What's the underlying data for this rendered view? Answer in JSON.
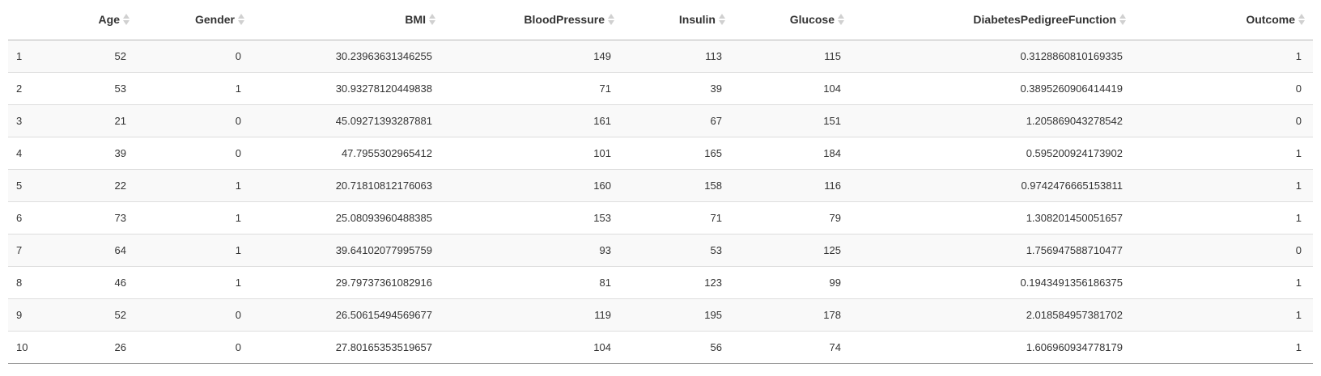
{
  "table": {
    "columns": [
      "",
      "Age",
      "Gender",
      "BMI",
      "BloodPressure",
      "Insulin",
      "Glucose",
      "DiabetesPedigreeFunction",
      "Outcome"
    ],
    "rows": [
      [
        "1",
        "52",
        "0",
        "30.23963631346255",
        "149",
        "113",
        "115",
        "0.3128860810169335",
        "1"
      ],
      [
        "2",
        "53",
        "1",
        "30.93278120449838",
        "71",
        "39",
        "104",
        "0.3895260906414419",
        "0"
      ],
      [
        "3",
        "21",
        "0",
        "45.09271393287881",
        "161",
        "67",
        "151",
        "1.205869043278542",
        "0"
      ],
      [
        "4",
        "39",
        "0",
        "47.7955302965412",
        "101",
        "165",
        "184",
        "0.595200924173902",
        "1"
      ],
      [
        "5",
        "22",
        "1",
        "20.71810812176063",
        "160",
        "158",
        "116",
        "0.9742476665153811",
        "1"
      ],
      [
        "6",
        "73",
        "1",
        "25.08093960488385",
        "153",
        "71",
        "79",
        "1.308201450051657",
        "1"
      ],
      [
        "7",
        "64",
        "1",
        "39.64102077995759",
        "93",
        "53",
        "125",
        "1.756947588710477",
        "0"
      ],
      [
        "8",
        "46",
        "1",
        "29.79737361082916",
        "81",
        "123",
        "99",
        "0.1943491356186375",
        "1"
      ],
      [
        "9",
        "52",
        "0",
        "26.50615494569677",
        "119",
        "195",
        "178",
        "2.018584957381702",
        "1"
      ],
      [
        "10",
        "26",
        "0",
        "27.80165353519657",
        "104",
        "56",
        "74",
        "1.606960934778179",
        "1"
      ]
    ]
  },
  "icons": {
    "sort": "sort-both-icon"
  },
  "colors": {
    "header_border": "#b8b8b8",
    "stripe": "#f9f9f9",
    "row_border": "#dddddd",
    "text": "#333333"
  }
}
